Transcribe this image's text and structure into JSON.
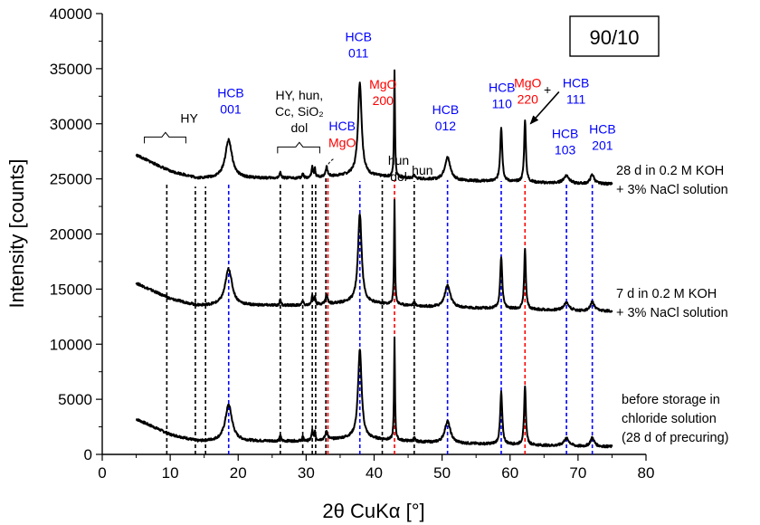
{
  "chart_data": {
    "type": "line",
    "badge": "90/10",
    "xlabel": "2θ CuKα [°]",
    "ylabel": "Intensity [counts]",
    "xlim": [
      0,
      80
    ],
    "ylim": [
      0,
      40000
    ],
    "x_ticks": [
      0,
      10,
      20,
      30,
      40,
      50,
      60,
      70,
      80
    ],
    "y_ticks": [
      0,
      5000,
      10000,
      15000,
      20000,
      25000,
      30000,
      35000,
      40000
    ],
    "grid": false,
    "baseline_shape": {
      "x": [
        5,
        10,
        14,
        20,
        30,
        37,
        45,
        50,
        60,
        70,
        75
      ],
      "y": [
        3200,
        1800,
        1200,
        1200,
        1200,
        1500,
        1200,
        1000,
        900,
        700,
        700
      ]
    },
    "peaks": [
      {
        "x": 18.6,
        "h": 3300,
        "w": 0.6
      },
      {
        "x": 26.2,
        "h": 600,
        "w": 0.1
      },
      {
        "x": 29.5,
        "h": 400,
        "w": 0.12
      },
      {
        "x": 30.9,
        "h": 900,
        "w": 0.12
      },
      {
        "x": 31.3,
        "h": 700,
        "w": 0.1
      },
      {
        "x": 33.0,
        "h": 800,
        "w": 0.18
      },
      {
        "x": 37.9,
        "h": 8000,
        "w": 0.32
      },
      {
        "x": 43.0,
        "h": 9300,
        "w": 0.08
      },
      {
        "x": 45.9,
        "h": 300,
        "w": 0.15
      },
      {
        "x": 50.8,
        "h": 2000,
        "w": 0.5
      },
      {
        "x": 58.7,
        "h": 4700,
        "w": 0.18
      },
      {
        "x": 62.2,
        "h": 5400,
        "w": 0.15
      },
      {
        "x": 68.3,
        "h": 700,
        "w": 0.5
      },
      {
        "x": 72.1,
        "h": 800,
        "w": 0.35
      }
    ],
    "series": [
      {
        "label_lines": [
          "before storage in",
          "chloride solution",
          "(28 d of precuring)"
        ],
        "offset": 0,
        "scale": 1.0
      },
      {
        "label_lines": [
          "7 d in 0.2 M KOH",
          "+ 3% NaCl solution"
        ],
        "offset": 12300,
        "scale": 1.01
      },
      {
        "label_lines": [
          "28 d in 0.2 M KOH",
          "+ 3% NaCl solution"
        ],
        "offset": 23800,
        "scale": 1.05
      }
    ],
    "reference_lines": [
      {
        "x": 9.5,
        "color": "#000000",
        "y_top": 24600
      },
      {
        "x": 13.7,
        "color": "#000000",
        "y_top": 24300
      },
      {
        "x": 15.2,
        "color": "#000000",
        "y_top": 24300
      },
      {
        "x": 18.6,
        "color": "#0000ff",
        "y_top": 24700
      },
      {
        "x": 26.2,
        "color": "#000000",
        "y_top": 24500
      },
      {
        "x": 29.5,
        "color": "#000000",
        "y_top": 24600
      },
      {
        "x": 30.9,
        "color": "#000000",
        "y_top": 24600
      },
      {
        "x": 31.4,
        "color": "#000000",
        "y_top": 24600
      },
      {
        "x": 32.9,
        "color": "#000000",
        "y_top": 25100
      },
      {
        "x": 33.2,
        "color": "#ff0000",
        "y_top": 25100
      },
      {
        "x": 37.9,
        "color": "#0000ff",
        "y_top": 24800
      },
      {
        "x": 41.2,
        "color": "#000000",
        "y_top": 24900
      },
      {
        "x": 43.0,
        "color": "#ff0000",
        "y_top": 24900
      },
      {
        "x": 45.9,
        "color": "#000000",
        "y_top": 24800
      },
      {
        "x": 50.8,
        "color": "#0000ff",
        "y_top": 24900
      },
      {
        "x": 58.7,
        "color": "#0000ff",
        "y_top": 24800
      },
      {
        "x": 62.2,
        "color": "#ff0000",
        "y_top": 24800
      },
      {
        "x": 68.3,
        "color": "#0000ff",
        "y_top": 24700
      },
      {
        "x": 72.1,
        "color": "#0000ff",
        "y_top": 24700
      }
    ],
    "annotations": [
      {
        "x": 12.8,
        "y": 30100,
        "lines": [
          "HY"
        ],
        "color": "black"
      },
      {
        "x": 29.0,
        "y": 32200,
        "lines": [
          "HY, hun,",
          "Cc, SiO₂",
          "dol"
        ],
        "color": "black"
      },
      {
        "x": 43.6,
        "y": 26300,
        "lines": [
          "hun",
          "dol"
        ],
        "color": "black"
      },
      {
        "x": 47.1,
        "y": 25400,
        "lines": [
          "hun"
        ],
        "color": "black"
      },
      {
        "x": 18.9,
        "y": 32400,
        "lines": [
          "HCB",
          "001"
        ],
        "color": "blue"
      },
      {
        "x": 35.3,
        "y": 29400,
        "lines": [
          "HCB"
        ],
        "color": "blue"
      },
      {
        "x": 35.3,
        "y": 27900,
        "lines": [
          "MgO"
        ],
        "color": "red"
      },
      {
        "x": 37.7,
        "y": 37500,
        "lines": [
          "HCB",
          "011"
        ],
        "color": "blue"
      },
      {
        "x": 41.3,
        "y": 33200,
        "lines": [
          "MgO",
          "200"
        ],
        "color": "red"
      },
      {
        "x": 50.5,
        "y": 30900,
        "lines": [
          "HCB",
          "012"
        ],
        "color": "blue"
      },
      {
        "x": 58.8,
        "y": 32900,
        "lines": [
          "HCB",
          "110"
        ],
        "color": "blue"
      },
      {
        "x": 62.6,
        "y": 33300,
        "lines": [
          "MgO",
          "220"
        ],
        "color": "red"
      },
      {
        "x": 65.5,
        "y": 32700,
        "lines": [
          "+"
        ],
        "color": "black"
      },
      {
        "x": 69.7,
        "y": 33300,
        "lines": [
          "HCB",
          "111"
        ],
        "color": "blue"
      },
      {
        "x": 68.1,
        "y": 28700,
        "lines": [
          "HCB",
          "103"
        ],
        "color": "blue"
      },
      {
        "x": 73.6,
        "y": 29100,
        "lines": [
          "HCB",
          "201"
        ],
        "color": "blue"
      }
    ],
    "brackets": [
      {
        "x1": 6.2,
        "x2": 12.3,
        "y": 28800,
        "tip_x": 9.3
      },
      {
        "x1": 25.8,
        "x2": 32.0,
        "y": 27900,
        "tip_x": 29.0
      }
    ],
    "arrow": {
      "from": [
        67.2,
        32900
      ],
      "to": [
        63.0,
        30000
      ]
    },
    "mgo_curve": {
      "from": [
        34.0,
        26800
      ],
      "to": [
        32.8,
        25500
      ]
    },
    "colors": {
      "line": "#000000",
      "hcb": "#0000ff",
      "mgo": "#ff0000"
    }
  }
}
